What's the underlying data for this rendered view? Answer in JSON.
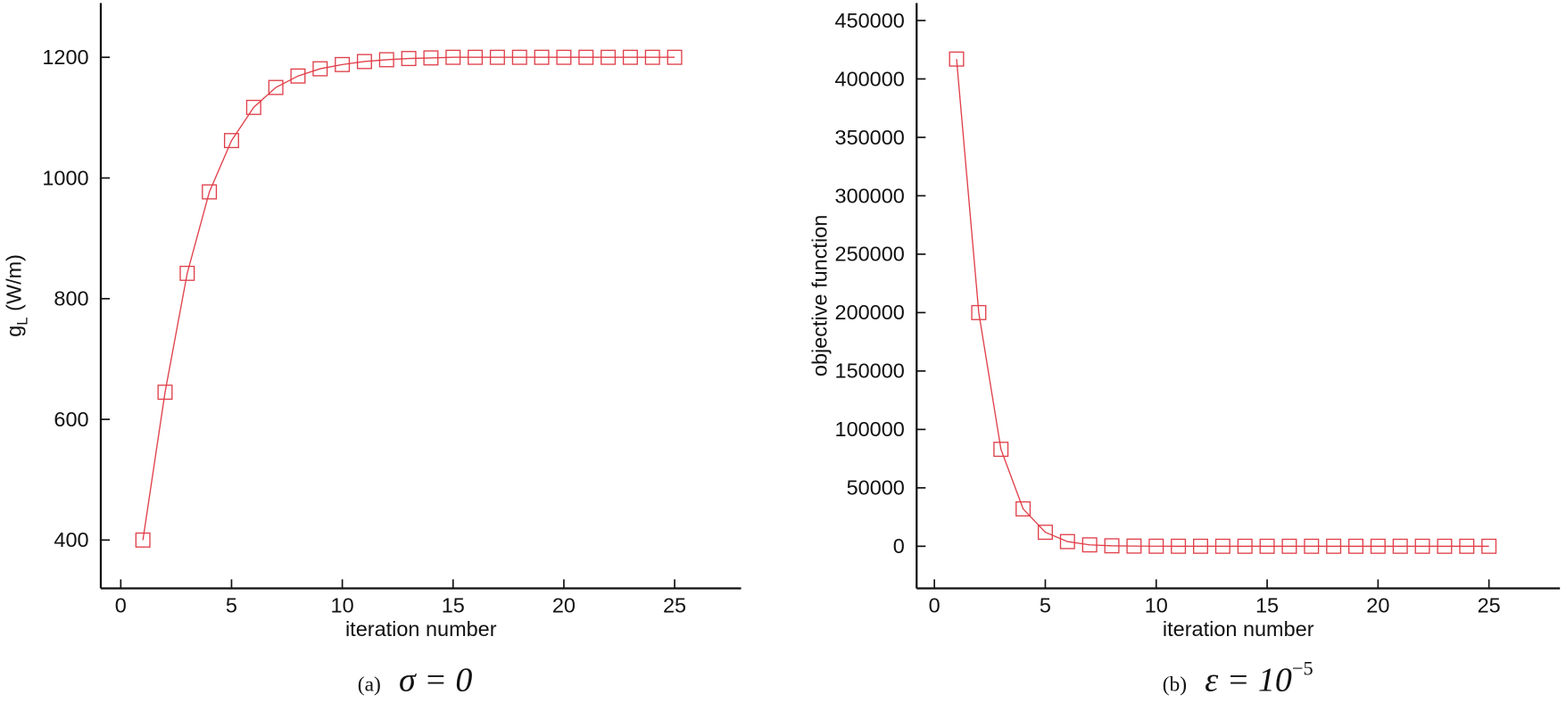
{
  "chart_data": [
    {
      "type": "line",
      "marker": "square",
      "color": "#e0404a",
      "xlabel": "iteration number",
      "ylabel": {
        "text": "g",
        "subscript": "L",
        "suffix": " (W/m)"
      },
      "caption": {
        "label": "(a)",
        "expression": "σ = 0"
      },
      "x": [
        1,
        2,
        3,
        4,
        5,
        6,
        7,
        8,
        9,
        10,
        11,
        12,
        13,
        14,
        15,
        16,
        17,
        18,
        19,
        20,
        21,
        22,
        23,
        24,
        25
      ],
      "values": [
        400,
        645,
        842,
        977,
        1062,
        1117,
        1150,
        1169,
        1181,
        1188,
        1193,
        1196,
        1198,
        1199,
        1200,
        1200,
        1200,
        1200,
        1200,
        1200,
        1200,
        1200,
        1200,
        1200,
        1200
      ],
      "xlim": [
        -0.9,
        28
      ],
      "xticks": [
        0,
        5,
        10,
        15,
        20,
        25
      ],
      "ylim": [
        320,
        1290
      ],
      "yticks": [
        400,
        600,
        800,
        1000,
        1200
      ]
    },
    {
      "type": "line",
      "marker": "square",
      "color": "#e0404a",
      "xlabel": "iteration number",
      "ylabel": {
        "text": "objective function"
      },
      "caption": {
        "label": "(b)",
        "expression": "ε = 10",
        "superscript": "−5"
      },
      "x": [
        1,
        2,
        3,
        4,
        5,
        6,
        7,
        8,
        9,
        10,
        11,
        12,
        13,
        14,
        15,
        16,
        17,
        18,
        19,
        20,
        21,
        22,
        23,
        24,
        25
      ],
      "values": [
        417000,
        200000,
        83000,
        32000,
        12000,
        4000,
        1200,
        400,
        150,
        50,
        20,
        10,
        0,
        0,
        0,
        0,
        0,
        0,
        0,
        0,
        0,
        0,
        0,
        0,
        0
      ],
      "xlim": [
        -0.8,
        28.2
      ],
      "xticks": [
        0,
        5,
        10,
        15,
        20,
        25
      ],
      "ylim": [
        -36000,
        465000
      ],
      "yticks": [
        0,
        50000,
        100000,
        150000,
        200000,
        250000,
        300000,
        350000,
        400000,
        450000
      ]
    }
  ]
}
